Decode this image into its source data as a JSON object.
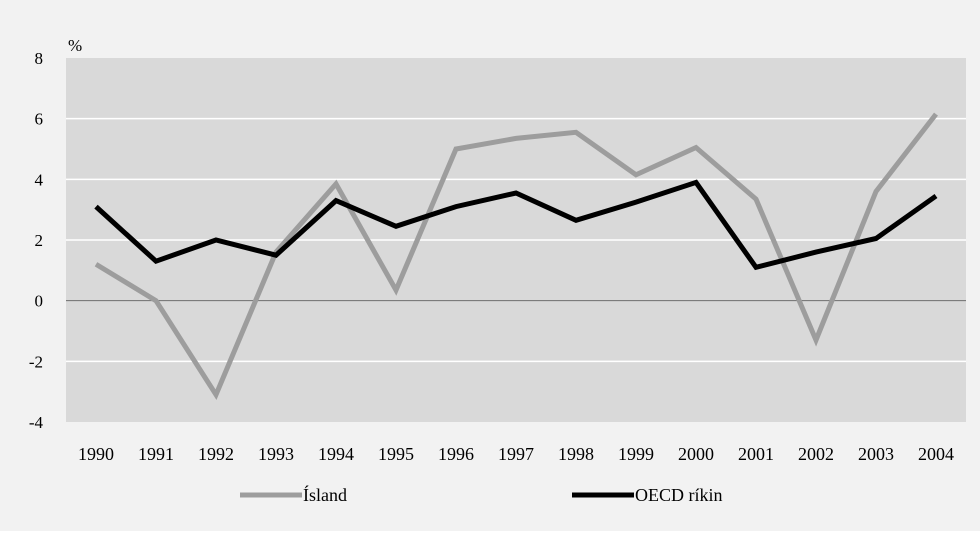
{
  "chart_data": {
    "type": "line",
    "unit_label": "%",
    "categories": [
      "1990",
      "1991",
      "1992",
      "1993",
      "1994",
      "1995",
      "1996",
      "1997",
      "1998",
      "1999",
      "2000",
      "2001",
      "2002",
      "2003",
      "2004"
    ],
    "ylim": [
      -4,
      8
    ],
    "yticks": [
      -4,
      -2,
      0,
      2,
      4,
      6,
      8
    ],
    "grid": true,
    "legend_placement": "bottom",
    "series": [
      {
        "name": "Ísland",
        "color": "#9d9d9d",
        "values": [
          1.2,
          0.0,
          -3.1,
          1.6,
          3.85,
          0.35,
          5.0,
          5.35,
          5.55,
          4.15,
          5.05,
          3.35,
          -1.3,
          3.6,
          6.15
        ]
      },
      {
        "name": "OECD ríkin",
        "color": "#000000",
        "values": [
          3.1,
          1.3,
          2.0,
          1.5,
          3.3,
          2.45,
          3.1,
          3.55,
          2.65,
          3.25,
          3.9,
          1.1,
          1.6,
          2.05,
          3.45
        ]
      }
    ]
  }
}
